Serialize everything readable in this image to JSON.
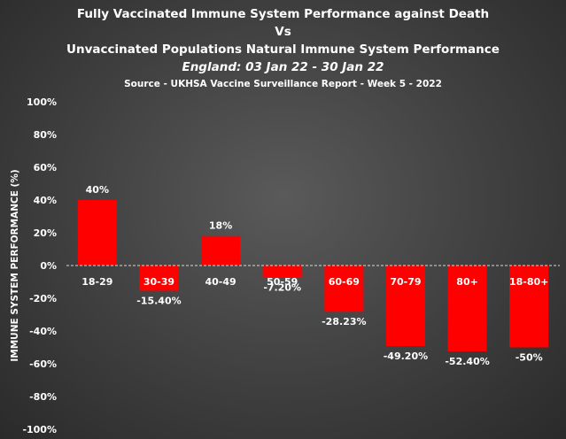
{
  "chart_data": {
    "type": "bar",
    "title_lines": [
      "Fully Vaccinated Immune System Performance  against Death",
      "Vs",
      "Unvaccinated Populations Natural Immune System Performance",
      "England:  03 Jan 22 - 30 Jan 22",
      "Source - UKHSA Vaccine Surveillance Report - Week 5 - 2022"
    ],
    "ylabel": "IMMUNE SYSTEM PERFORMANCE  (%)",
    "xlabel": "",
    "categories": [
      "18-29",
      "30-39",
      "40-49",
      "50-59",
      "60-69",
      "70-79",
      "80+",
      "18-80+"
    ],
    "values": [
      40,
      -15.4,
      18,
      -7.2,
      -28.23,
      -49.2,
      -52.4,
      -50
    ],
    "data_labels": [
      "40%",
      "-15.40%",
      "18%",
      "-7.20%",
      "-28.23%",
      "-49.20%",
      "-52.40%",
      "-50%"
    ],
    "ylim": [
      -100,
      100
    ],
    "yticks": [
      100,
      80,
      60,
      40,
      20,
      0,
      -20,
      -40,
      -60,
      -80,
      -100
    ],
    "ytick_labels": [
      "100%",
      "80%",
      "60%",
      "40%",
      "20%",
      "0%",
      "-20%",
      "-40%",
      "-60%",
      "-80%",
      "-100%"
    ],
    "grid": false,
    "bar_color": "#ff0000",
    "zero_line_color": "#d9d9d9"
  }
}
